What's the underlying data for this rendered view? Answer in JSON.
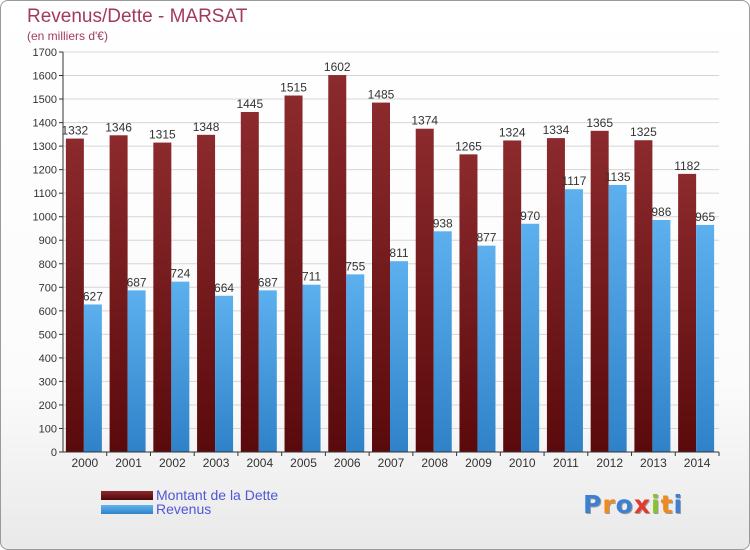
{
  "header": {
    "title": "Revenus/Dette - MARSAT",
    "subtitle": "(en milliers d'€)"
  },
  "chart_data": {
    "type": "bar",
    "title": "Revenus/Dette - MARSAT",
    "ylabel": "(en milliers d'€)",
    "ylim": [
      0,
      1700
    ],
    "ytick_step": 100,
    "grid": true,
    "categories": [
      "2000",
      "2001",
      "2002",
      "2003",
      "2004",
      "2005",
      "2006",
      "2007",
      "2008",
      "2009",
      "2010",
      "2011",
      "2012",
      "2013",
      "2014"
    ],
    "series": [
      {
        "name": "Montant de la Dette",
        "color": "#7a1a1d",
        "values": [
          1332,
          1346,
          1315,
          1348,
          1445,
          1515,
          1602,
          1485,
          1374,
          1265,
          1324,
          1334,
          1365,
          1325,
          1182
        ]
      },
      {
        "name": "Revenus",
        "color": "#4aa0e4",
        "values": [
          627,
          687,
          724,
          664,
          687,
          711,
          755,
          811,
          938,
          877,
          970,
          1117,
          1135,
          986,
          965
        ]
      }
    ],
    "legend_position": "bottom-left"
  },
  "logo": {
    "text": "Proxiti"
  },
  "colors": {
    "title": "#a23a5c",
    "legend_text": "#4f57d6",
    "grid": "#d5d5d5"
  }
}
